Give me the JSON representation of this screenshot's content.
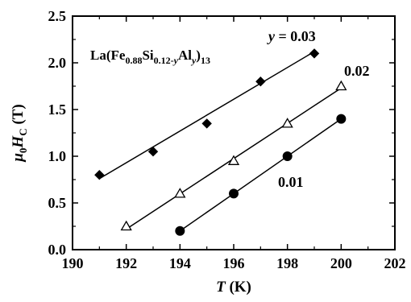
{
  "chart_data": {
    "type": "scatter",
    "xlabel": "T (K)",
    "xlabel_parts": {
      "var": "T",
      "unit": " (K)"
    },
    "ylabel": "μ0HC (T)",
    "ylabel_parts": {
      "mu": "μ",
      "sub0": "0",
      "H": "H",
      "subC": "C",
      "unit": " (T)"
    },
    "xlim": [
      190,
      202
    ],
    "ylim": [
      0.0,
      2.5
    ],
    "x_ticks": [
      190,
      192,
      194,
      196,
      198,
      200,
      202
    ],
    "y_ticks": [
      0.0,
      0.5,
      1.0,
      1.5,
      2.0,
      2.5
    ],
    "y_tick_labels": [
      "0.0",
      "0.5",
      "1.0",
      "1.5",
      "2.0",
      "2.5"
    ],
    "grid": false,
    "formula": "La(Fe0.88Si0.12-yAly)13",
    "formula_parts": {
      "a": "La(Fe",
      "s1": "0.88",
      "b": "Si",
      "s2a": "0.12-",
      "s2b": "y",
      "c": "Al",
      "s3": "y",
      "d": ")",
      "s4": "13"
    },
    "series": [
      {
        "name": "y = 0.03",
        "label_var": "y",
        "label_val": " = 0.03",
        "marker": "diamond-filled",
        "x": [
          191,
          193,
          195,
          197,
          199
        ],
        "y": [
          0.8,
          1.05,
          1.35,
          1.8,
          2.1
        ],
        "fit": [
          [
            191,
            0.76
          ],
          [
            199,
            2.12
          ]
        ]
      },
      {
        "name": "0.02",
        "label_val": "0.02",
        "marker": "triangle-open",
        "x": [
          192,
          194,
          196,
          198,
          200
        ],
        "y": [
          0.25,
          0.6,
          0.95,
          1.35,
          1.75
        ],
        "fit": [
          [
            192,
            0.22
          ],
          [
            200,
            1.73
          ]
        ]
      },
      {
        "name": "0.01",
        "label_val": "0.01",
        "marker": "circle-filled",
        "x": [
          194,
          196,
          198,
          200
        ],
        "y": [
          0.2,
          0.6,
          1.0,
          1.4
        ],
        "fit": [
          [
            194,
            0.2
          ],
          [
            200,
            1.4
          ]
        ]
      }
    ]
  }
}
